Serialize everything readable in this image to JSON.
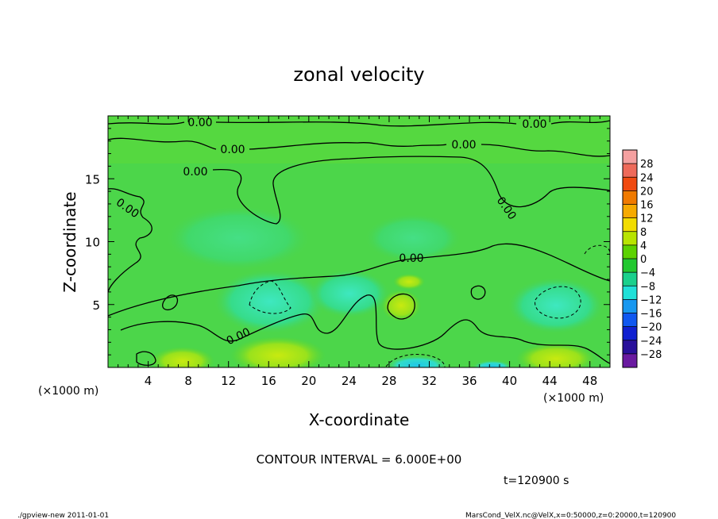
{
  "chart_data": {
    "type": "heatmap",
    "title": "zonal velocity",
    "xlabel": "X-coordinate",
    "ylabel": "Z-coordinate",
    "x_units_left": "(×1000 m)",
    "x_units_right": "(×1000 m)",
    "xlim": [
      0,
      50
    ],
    "ylim": [
      0,
      20
    ],
    "x_ticks": [
      "4",
      "8",
      "12",
      "16",
      "20",
      "24",
      "28",
      "32",
      "36",
      "40",
      "44",
      "48"
    ],
    "y_ticks": [
      "5",
      "10",
      "15"
    ],
    "x_tick_values": [
      4,
      8,
      12,
      16,
      20,
      24,
      28,
      32,
      36,
      40,
      44,
      48
    ],
    "y_tick_values": [
      5,
      10,
      15
    ],
    "colorbar": {
      "labels": [
        "28",
        "24",
        "20",
        "16",
        "12",
        "8",
        "4",
        "0",
        "−4",
        "−8",
        "−12",
        "−16",
        "−20",
        "−24",
        "−28"
      ],
      "colors": [
        "#f4a0a0",
        "#ee6a5a",
        "#f04a10",
        "#f07a00",
        "#f6aa00",
        "#f2dc00",
        "#b8e400",
        "#5cd200",
        "#22c830",
        "#1ad08c",
        "#20e0d8",
        "#1898f0",
        "#1058f0",
        "#1020d0",
        "#28109a",
        "#6a1aa0"
      ]
    },
    "contour_labels": [
      "0.00",
      "0.00",
      "0.00",
      "0.00",
      "0.00",
      "0.00",
      "0.00",
      "0.00",
      "0.00"
    ],
    "contour_interval": "CONTOUR INTERVAL = 6.000E+00",
    "time_label": "t=120900 s",
    "grid": false
  },
  "footer": {
    "left": "./gpview-new   2011-01-01",
    "right": "MarsCond_VelX.nc@VelX,x=0:50000,z=0:20000,t=120900"
  }
}
